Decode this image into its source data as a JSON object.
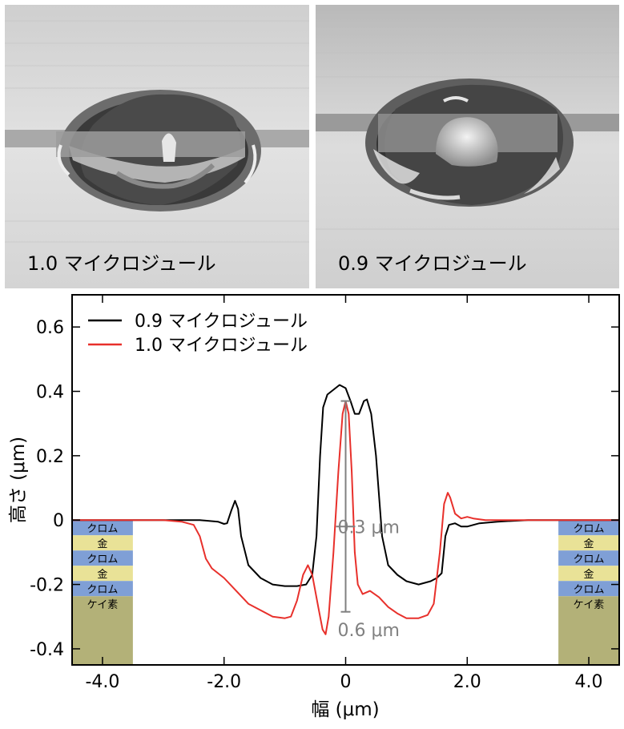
{
  "images": [
    {
      "label": "1.0 マイクロジュール"
    },
    {
      "label": "0.9 マイクロジュール"
    }
  ],
  "chart_data": {
    "type": "line",
    "xlabel": "幅 (μm)",
    "ylabel": "高さ (μm)",
    "xlim": [
      -4.5,
      4.5
    ],
    "ylim": [
      -0.45,
      0.7
    ],
    "xticks": [
      -4.0,
      -2.0,
      0.0,
      2.0,
      4.0
    ],
    "xtick_labels": [
      "-4.0",
      "-2.0",
      "0",
      "2.0",
      "4.0"
    ],
    "yticks": [
      0.6,
      0.4,
      0.2,
      0,
      -0.2,
      -0.4
    ],
    "ytick_labels": [
      "0.6",
      "0.4",
      "0.2",
      "0",
      "-0.2",
      "-0.4"
    ],
    "legend_position": "top-left",
    "series": [
      {
        "name": "0.9 マイクロジュール",
        "color": "#000000",
        "points": [
          [
            -4.5,
            0
          ],
          [
            -3.5,
            0
          ],
          [
            -3.0,
            0
          ],
          [
            -2.4,
            0
          ],
          [
            -2.1,
            -0.005
          ],
          [
            -2.0,
            -0.012
          ],
          [
            -1.95,
            -0.01
          ],
          [
            -1.88,
            0.03
          ],
          [
            -1.82,
            0.06
          ],
          [
            -1.77,
            0.035
          ],
          [
            -1.72,
            -0.05
          ],
          [
            -1.6,
            -0.14
          ],
          [
            -1.4,
            -0.18
          ],
          [
            -1.2,
            -0.2
          ],
          [
            -1.0,
            -0.205
          ],
          [
            -0.8,
            -0.205
          ],
          [
            -0.65,
            -0.2
          ],
          [
            -0.55,
            -0.17
          ],
          [
            -0.48,
            -0.05
          ],
          [
            -0.42,
            0.2
          ],
          [
            -0.37,
            0.35
          ],
          [
            -0.3,
            0.39
          ],
          [
            -0.2,
            0.405
          ],
          [
            -0.1,
            0.42
          ],
          [
            0.0,
            0.41
          ],
          [
            0.08,
            0.37
          ],
          [
            0.15,
            0.33
          ],
          [
            0.22,
            0.33
          ],
          [
            0.3,
            0.37
          ],
          [
            0.35,
            0.375
          ],
          [
            0.42,
            0.33
          ],
          [
            0.5,
            0.2
          ],
          [
            0.6,
            -0.05
          ],
          [
            0.7,
            -0.14
          ],
          [
            0.85,
            -0.17
          ],
          [
            1.0,
            -0.19
          ],
          [
            1.2,
            -0.2
          ],
          [
            1.4,
            -0.19
          ],
          [
            1.5,
            -0.18
          ],
          [
            1.58,
            -0.165
          ],
          [
            1.64,
            -0.05
          ],
          [
            1.7,
            -0.015
          ],
          [
            1.8,
            -0.01
          ],
          [
            1.9,
            -0.02
          ],
          [
            2.0,
            -0.02
          ],
          [
            2.2,
            -0.01
          ],
          [
            2.5,
            -0.005
          ],
          [
            3.0,
            0
          ],
          [
            3.5,
            0
          ],
          [
            4.0,
            0
          ],
          [
            4.5,
            0
          ]
        ]
      },
      {
        "name": "1.0 マイクロジュール",
        "color": "#e8302b",
        "points": [
          [
            -4.5,
            0
          ],
          [
            -3.5,
            0
          ],
          [
            -3.0,
            0
          ],
          [
            -2.7,
            -0.005
          ],
          [
            -2.5,
            -0.015
          ],
          [
            -2.4,
            -0.05
          ],
          [
            -2.3,
            -0.12
          ],
          [
            -2.2,
            -0.15
          ],
          [
            -2.0,
            -0.18
          ],
          [
            -1.8,
            -0.22
          ],
          [
            -1.6,
            -0.26
          ],
          [
            -1.4,
            -0.28
          ],
          [
            -1.2,
            -0.3
          ],
          [
            -1.0,
            -0.305
          ],
          [
            -0.9,
            -0.3
          ],
          [
            -0.8,
            -0.25
          ],
          [
            -0.7,
            -0.17
          ],
          [
            -0.62,
            -0.14
          ],
          [
            -0.55,
            -0.17
          ],
          [
            -0.45,
            -0.27
          ],
          [
            -0.38,
            -0.34
          ],
          [
            -0.33,
            -0.355
          ],
          [
            -0.28,
            -0.3
          ],
          [
            -0.2,
            -0.1
          ],
          [
            -0.12,
            0.15
          ],
          [
            -0.05,
            0.33
          ],
          [
            0.0,
            0.37
          ],
          [
            0.05,
            0.33
          ],
          [
            0.1,
            0.15
          ],
          [
            0.15,
            -0.1
          ],
          [
            0.2,
            -0.2
          ],
          [
            0.28,
            -0.23
          ],
          [
            0.4,
            -0.22
          ],
          [
            0.55,
            -0.24
          ],
          [
            0.7,
            -0.27
          ],
          [
            0.85,
            -0.29
          ],
          [
            1.0,
            -0.305
          ],
          [
            1.2,
            -0.305
          ],
          [
            1.35,
            -0.295
          ],
          [
            1.45,
            -0.26
          ],
          [
            1.55,
            -0.1
          ],
          [
            1.62,
            0.05
          ],
          [
            1.68,
            0.085
          ],
          [
            1.72,
            0.07
          ],
          [
            1.8,
            0.02
          ],
          [
            1.9,
            0.005
          ],
          [
            2.0,
            0.01
          ],
          [
            2.1,
            0.005
          ],
          [
            2.3,
            0
          ],
          [
            2.6,
            0
          ],
          [
            3.0,
            0
          ],
          [
            3.5,
            0
          ],
          [
            4.5,
            0
          ]
        ]
      }
    ],
    "annotations": [
      {
        "text": "0.3 μm",
        "x": 0.0,
        "y": -0.02
      },
      {
        "text": "0.6 μm",
        "x": 0.0,
        "y": -0.34
      }
    ],
    "layer_stacks": [
      {
        "side": "left",
        "layers": [
          {
            "label": "クロム",
            "color": "#7f9fd6"
          },
          {
            "label": "金",
            "color": "#e9e297"
          },
          {
            "label": "クロム",
            "color": "#7f9fd6"
          },
          {
            "label": "金",
            "color": "#e9e297"
          },
          {
            "label": "クロム",
            "color": "#7f9fd6"
          },
          {
            "label": "ケイ素",
            "color": "#b3b178"
          }
        ]
      },
      {
        "side": "right",
        "layers": [
          {
            "label": "クロム",
            "color": "#7f9fd6"
          },
          {
            "label": "金",
            "color": "#e9e297"
          },
          {
            "label": "クロム",
            "color": "#7f9fd6"
          },
          {
            "label": "金",
            "color": "#e9e297"
          },
          {
            "label": "クロム",
            "color": "#7f9fd6"
          },
          {
            "label": "ケイ素",
            "color": "#b3b178"
          }
        ]
      }
    ]
  }
}
